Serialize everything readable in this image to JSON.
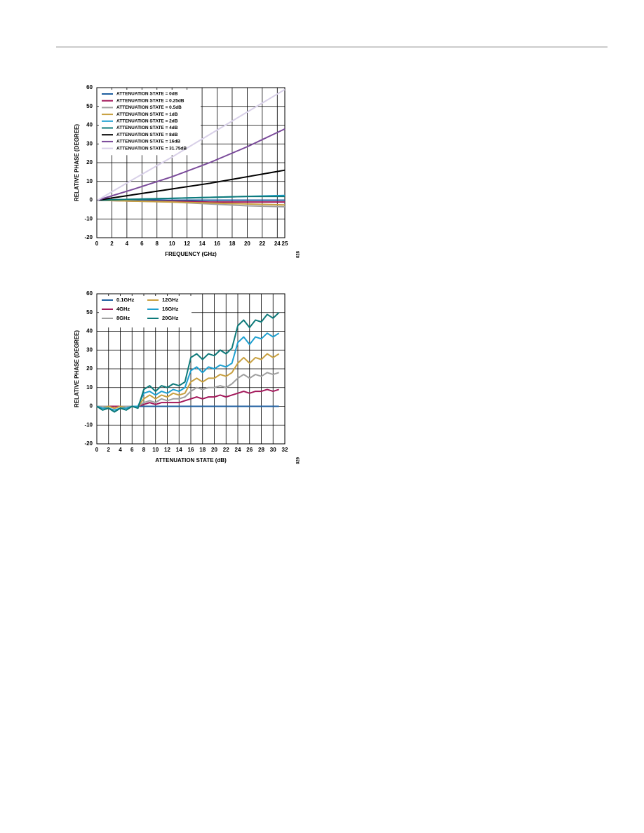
{
  "chart_data": [
    {
      "type": "line",
      "xlabel": "FREQUENCY (GHz)",
      "ylabel": "RELATIVE PHASE (DEGREE)",
      "figure_id": "028",
      "xlim": [
        0,
        25
      ],
      "ylim": [
        -20,
        60
      ],
      "xticks": [
        0,
        2,
        4,
        6,
        8,
        10,
        12,
        14,
        16,
        18,
        20,
        22,
        24,
        25
      ],
      "yticks": [
        -20,
        -10,
        0,
        10,
        20,
        30,
        40,
        50,
        60
      ],
      "grid": true,
      "legend": "upper left",
      "legend_columns": 1,
      "x": [
        0.1,
        5,
        10,
        15,
        20,
        25
      ],
      "series": [
        {
          "name": "ATTENUATION STATE = 0dB",
          "color": "#1f5fa0",
          "values": [
            0,
            0,
            0,
            0,
            0,
            0
          ]
        },
        {
          "name": "ATTENUATION STATE = 0.25dB",
          "color": "#a3195b",
          "values": [
            0,
            -0.5,
            -0.5,
            -1,
            -1,
            -1
          ]
        },
        {
          "name": "ATTENUATION STATE = 0.5dB",
          "color": "#a0a0a0",
          "values": [
            0,
            -0.5,
            -1,
            -2,
            -3,
            -3.5
          ]
        },
        {
          "name": "ATTENUATION STATE = 1dB",
          "color": "#c8a040",
          "values": [
            0,
            -0.5,
            -1,
            -1.5,
            -2,
            -2.5
          ]
        },
        {
          "name": "ATTENUATION STATE = 2dB",
          "color": "#1ea0d0",
          "values": [
            0,
            0.5,
            1,
            1.5,
            2,
            2.5
          ]
        },
        {
          "name": "ATTENUATION STATE = 4dB",
          "color": "#0e7a7a",
          "values": [
            0,
            0.5,
            1,
            1.5,
            2,
            2
          ]
        },
        {
          "name": "ATTENUATION STATE = 8dB",
          "color": "#000000",
          "values": [
            0,
            3,
            6,
            9,
            12.5,
            16
          ]
        },
        {
          "name": "ATTENUATION STATE = 16dB",
          "color": "#7a4a9a",
          "values": [
            0,
            6,
            12.5,
            20,
            28.5,
            38
          ]
        },
        {
          "name": "ATTENUATION STATE = 31.75dB",
          "color": "#d8d0e8",
          "values": [
            0,
            11.5,
            23,
            35,
            47,
            59
          ]
        }
      ]
    },
    {
      "type": "line",
      "xlabel": "ATTENUATION STATE (dB)",
      "ylabel": "RELATIVE PHASE (DEGREE)",
      "figure_id": "029",
      "xlim": [
        0,
        32
      ],
      "ylim": [
        -20,
        60
      ],
      "xticks": [
        0,
        2,
        4,
        6,
        8,
        10,
        12,
        14,
        16,
        18,
        20,
        22,
        24,
        26,
        28,
        30,
        32
      ],
      "yticks": [
        -20,
        -10,
        0,
        10,
        20,
        30,
        40,
        50,
        60
      ],
      "grid": true,
      "legend": "upper left",
      "legend_columns": 2,
      "x": [
        0,
        1,
        2,
        3,
        4,
        5,
        6,
        7,
        8,
        9,
        10,
        11,
        12,
        13,
        14,
        15,
        16,
        17,
        18,
        19,
        20,
        21,
        22,
        23,
        24,
        25,
        26,
        27,
        28,
        29,
        30,
        31
      ],
      "series": [
        {
          "name": "0.1GHz",
          "color": "#1f5fa0",
          "values": [
            0,
            0,
            0,
            0,
            0,
            0,
            0,
            0,
            0,
            0,
            0,
            0,
            0,
            0,
            0,
            0,
            0,
            0,
            0,
            0,
            0,
            0,
            0,
            0,
            0,
            0,
            0,
            0,
            0,
            0,
            0,
            0
          ]
        },
        {
          "name": "4GHz",
          "color": "#a3195b",
          "values": [
            0,
            0,
            0,
            0,
            0,
            0,
            0,
            0,
            1,
            2,
            1,
            2,
            2,
            2,
            2,
            3,
            4,
            5,
            4,
            5,
            5,
            6,
            5,
            6,
            7,
            8,
            7,
            8,
            8,
            9,
            8,
            9
          ]
        },
        {
          "name": "8GHz",
          "color": "#a0a0a0",
          "values": [
            0,
            0,
            0,
            -1,
            0,
            0,
            0,
            0,
            2,
            3,
            2,
            4,
            3,
            4,
            4,
            5,
            8,
            10,
            9,
            10,
            10,
            11,
            10,
            12,
            15,
            17,
            15,
            17,
            16,
            18,
            17,
            18
          ]
        },
        {
          "name": "12GHz",
          "color": "#c8a040",
          "values": [
            0,
            -1,
            0,
            -1,
            0,
            -1,
            0,
            0,
            4,
            6,
            4,
            6,
            5,
            7,
            6,
            7,
            13,
            15,
            13,
            15,
            15,
            17,
            16,
            18,
            23,
            26,
            23,
            26,
            25,
            28,
            26,
            28
          ]
        },
        {
          "name": "16GHz",
          "color": "#1ea0d0",
          "values": [
            0,
            -1,
            -1,
            -2,
            -1,
            -1,
            0,
            0,
            7,
            8,
            6,
            8,
            7,
            9,
            8,
            10,
            19,
            21,
            18,
            21,
            20,
            22,
            21,
            23,
            34,
            37,
            33,
            37,
            36,
            39,
            37,
            39
          ]
        },
        {
          "name": "20GHz",
          "color": "#0e7a7a",
          "values": [
            0,
            -2,
            -1,
            -3,
            -1,
            -2,
            0,
            -1,
            9,
            11,
            8,
            11,
            10,
            12,
            11,
            13,
            26,
            28,
            25,
            28,
            27,
            30,
            28,
            31,
            43,
            46,
            42,
            46,
            45,
            49,
            47,
            50
          ]
        }
      ]
    }
  ]
}
